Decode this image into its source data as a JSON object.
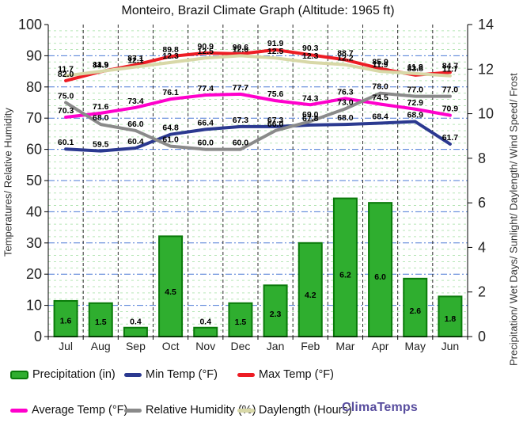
{
  "watermark": {
    "text": "ClimaTemps",
    "color": "#584d9e"
  },
  "chart_data": {
    "type": "combo-bar-line",
    "title": "Monteiro, Brazil Climate Graph (Altitude: 1965 ft)",
    "categories": [
      "Jul",
      "Aug",
      "Sep",
      "Oct",
      "Nov",
      "Dec",
      "Jan",
      "Feb",
      "Mar",
      "Apr",
      "May",
      "Jun"
    ],
    "ylabel_left": "Temperatures/ Relative Humidity",
    "ylabel_right": "Precipitation/ Wet Days/ Sunlight/ Daylength/ Wind Speed/ Frost",
    "left_axis": {
      "range": [
        0,
        100
      ],
      "ticks": [
        0,
        10,
        20,
        30,
        40,
        50,
        60,
        70,
        80,
        90,
        100
      ]
    },
    "right_axis": {
      "range": [
        0,
        14
      ],
      "ticks": [
        0,
        2,
        4,
        6,
        8,
        10,
        12,
        14
      ]
    },
    "grid": {
      "minor_horizontal": "green dashed",
      "major_horizontal": "blue dash-dot",
      "vertical": "black dashed"
    },
    "legend_position": "bottom",
    "series": [
      {
        "name": "Precipitation (in)",
        "type": "bar",
        "axis": "right",
        "color": "#2fae2f",
        "border": "#0a7a0a",
        "values": [
          1.6,
          1.5,
          0.4,
          4.5,
          0.4,
          1.5,
          2.3,
          4.2,
          6.2,
          6.0,
          2.6,
          1.8
        ]
      },
      {
        "name": "Min Temp (°F)",
        "type": "line",
        "axis": "left",
        "color": "#2b3990",
        "values": [
          60.1,
          59.5,
          60.4,
          64.8,
          66.4,
          67.3,
          67.3,
          67.8,
          68.0,
          68.4,
          68.9,
          61.7
        ]
      },
      {
        "name": "Max Temp (°F)",
        "type": "line",
        "axis": "left",
        "color": "#ed1c24",
        "values": [
          82.0,
          84.9,
          87.1,
          89.8,
          90.9,
          90.6,
          91.9,
          90.3,
          88.7,
          85.9,
          83.8,
          84.7
        ]
      },
      {
        "name": "Average Temp (°F)",
        "type": "line",
        "axis": "left",
        "color": "#ff00cc",
        "values": [
          70.3,
          71.6,
          73.4,
          76.1,
          77.4,
          77.7,
          75.6,
          74.3,
          76.3,
          74.5,
          72.9,
          70.9
        ]
      },
      {
        "name": "Relative Humidity (%)",
        "type": "line",
        "axis": "left",
        "color": "#8a8a8a",
        "values": [
          75.0,
          68.0,
          66.0,
          61.0,
          60.0,
          60.0,
          66.0,
          69.0,
          73.0,
          78.0,
          77.0,
          77.0
        ]
      },
      {
        "name": "Daylength (Hours)",
        "type": "line",
        "axis": "right",
        "color": "#d8d8a7",
        "values": [
          11.7,
          11.9,
          12.1,
          12.3,
          12.5,
          12.6,
          12.5,
          12.3,
          12.2,
          11.9,
          11.8,
          11.7
        ]
      }
    ]
  }
}
